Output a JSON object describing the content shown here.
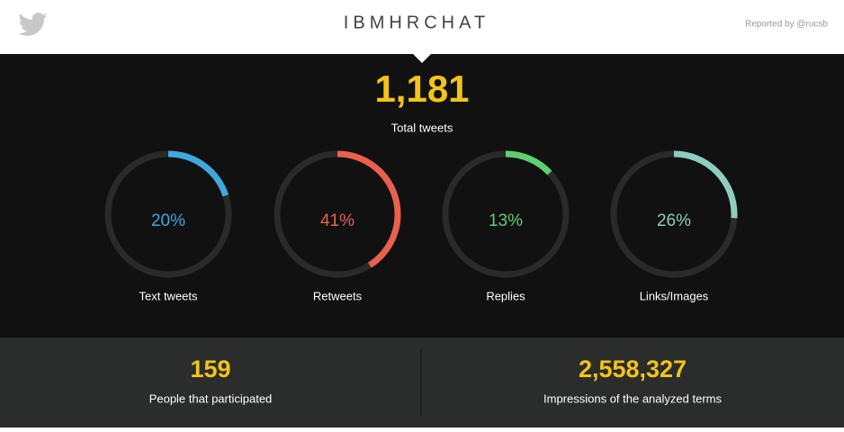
{
  "header": {
    "title": "IBMHRCHAT",
    "reported_by": "Reported by @rucsb"
  },
  "total": {
    "value": "1,181",
    "label": "Total tweets"
  },
  "gauges": [
    {
      "value": {
        "value": 20,
        "label": "20%"
      },
      "label": "Text tweets",
      "color": "#3fa8de"
    },
    {
      "value": {
        "value": 41,
        "label": "41%"
      },
      "label": "Retweets",
      "color": "#e9604d"
    },
    {
      "value": {
        "value": 13,
        "label": "13%"
      },
      "label": "Replies",
      "color": "#5fd070"
    },
    {
      "value": {
        "value": 26,
        "label": "26%"
      },
      "label": "Links/Images",
      "color": "#8fcdc1"
    }
  ],
  "stats": [
    {
      "value": "159",
      "label": "People that participated"
    },
    {
      "value": "2,558,327",
      "label": "Impressions of the analyzed terms"
    }
  ]
}
